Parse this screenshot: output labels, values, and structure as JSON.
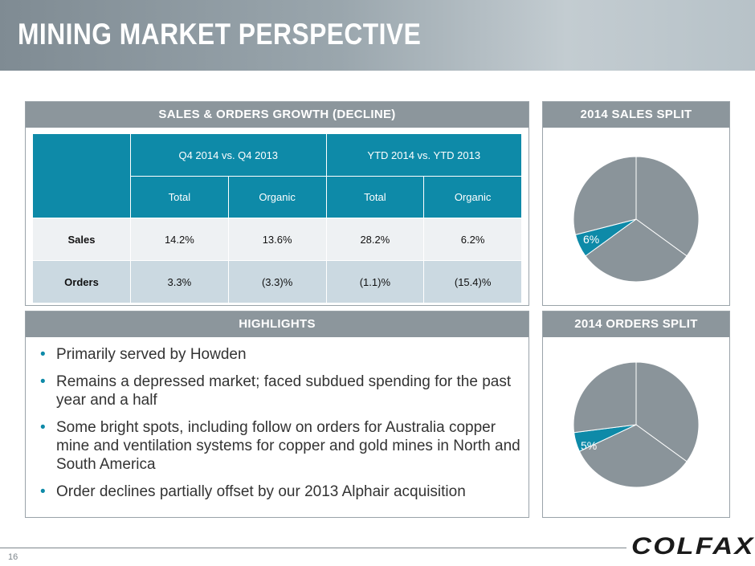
{
  "header": {
    "title": "MINING MARKET PERSPECTIVE"
  },
  "growth_panel": {
    "title": "SALES & ORDERS GROWTH (DECLINE)",
    "group_headers": [
      "Q4 2014 vs. Q4 2013",
      "YTD 2014 vs. YTD 2013"
    ],
    "sub_headers": [
      "Total",
      "Organic",
      "Total",
      "Organic"
    ],
    "rows": [
      {
        "label": "Sales",
        "values": [
          "14.2%",
          "13.6%",
          "28.2%",
          "6.2%"
        ]
      },
      {
        "label": "Orders",
        "values": [
          "3.3%",
          "(3.3)%",
          "(1.1)%",
          "(15.4)%"
        ]
      }
    ]
  },
  "highlights": {
    "title": "HIGHLIGHTS",
    "bullets": [
      "Primarily served by Howden",
      "Remains a depressed market; faced subdued spending for the past year and a half",
      "Some bright spots, including follow on orders for Australia copper mine and ventilation systems for copper and gold mines in North and South America",
      "Order declines partially offset by our 2013 Alphair acquisition"
    ]
  },
  "sales_split": {
    "title": "2014 SALES SPLIT",
    "highlight_label": "6%"
  },
  "orders_split": {
    "title": "2014 ORDERS SPLIT",
    "highlight_label": "5%"
  },
  "chart_data": [
    {
      "type": "pie",
      "title": "2014 SALES SPLIT",
      "values": [
        35,
        30,
        6,
        29
      ],
      "colors": [
        "#8a949a",
        "#8a949a",
        "#0e8aa8",
        "#8a949a"
      ],
      "labels": [
        "",
        "",
        "6%",
        ""
      ]
    },
    {
      "type": "pie",
      "title": "2014 ORDERS SPLIT",
      "values": [
        35,
        33,
        5,
        27
      ],
      "colors": [
        "#8a949a",
        "#8a949a",
        "#0e8aa8",
        "#8a949a"
      ],
      "labels": [
        "",
        "",
        "5%",
        ""
      ]
    }
  ],
  "footer": {
    "page_number": "16",
    "logo": "COLFAX"
  }
}
